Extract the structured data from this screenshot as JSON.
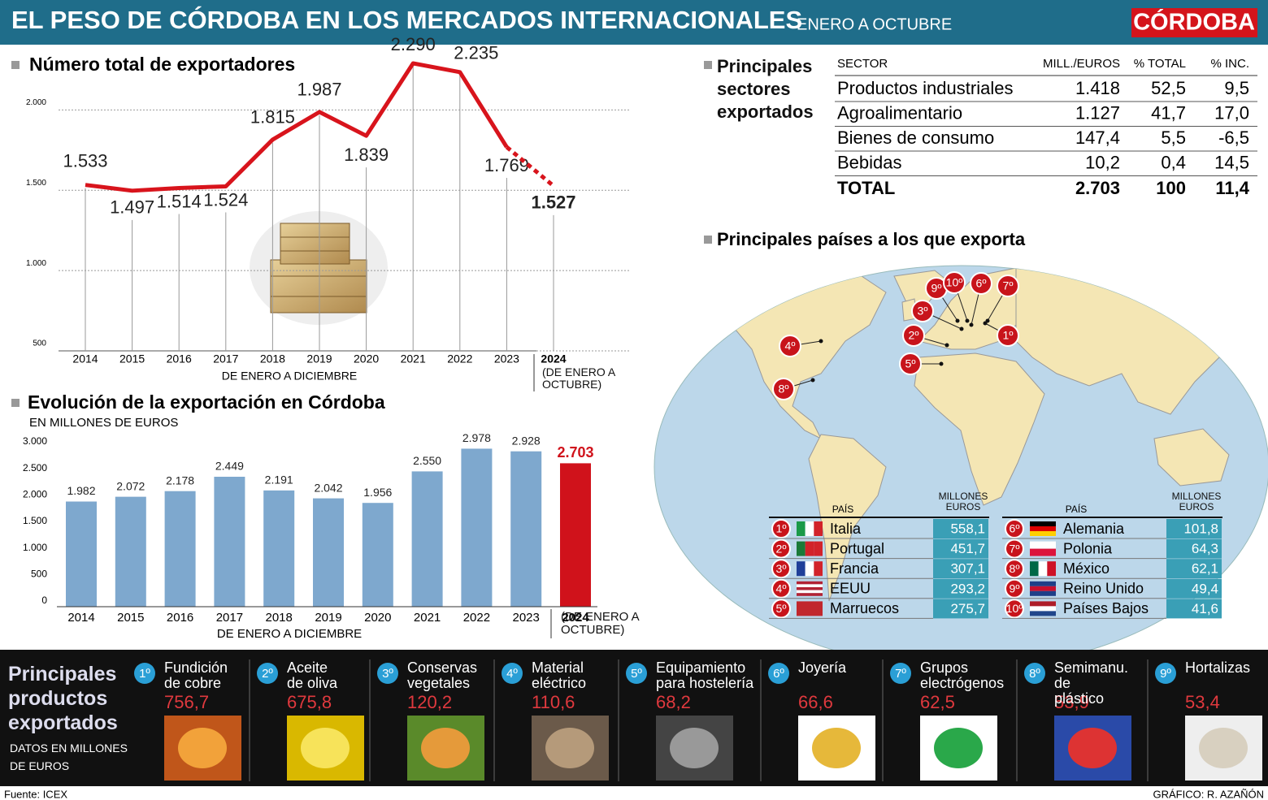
{
  "header": {
    "title": "EL PESO DE CÓRDOBA EN LOS MERCADOS INTERNACIONALES",
    "subtitle": "ENERO A OCTUBRE",
    "logo": "CÓRDOBA"
  },
  "chart_data": [
    {
      "type": "line",
      "title": "Número total de exportadores",
      "categories": [
        "2014",
        "2015",
        "2016",
        "2017",
        "2018",
        "2019",
        "2020",
        "2021",
        "2022",
        "2023",
        "2024"
      ],
      "values": [
        1533,
        1497,
        1514,
        1524,
        1815,
        1987,
        1839,
        2290,
        2235,
        1769,
        1527
      ],
      "value_labels": [
        "1.533",
        "1.497",
        "1.514",
        "1.524",
        "1.815",
        "1.987",
        "1.839",
        "2.290",
        "2.235",
        "1.769",
        "1.527"
      ],
      "color": "#d8141c",
      "ylim": [
        500,
        2300
      ],
      "yticks": [
        500,
        {
          "value": 1000,
          "label": "1.000"
        },
        {
          "value": 1500,
          "label": "1.500"
        },
        {
          "value": 2000,
          "label": "2.000"
        }
      ],
      "grid": true,
      "x_note": "DE ENERO A DICIEMBRE",
      "last_category_note": "(DE ENERO A OCTUBRE)"
    },
    {
      "type": "bar",
      "title": "Evolución de la exportación en Córdoba",
      "subtitle": "EN MILLONES DE EUROS",
      "categories": [
        "2014",
        "2015",
        "2016",
        "2017",
        "2018",
        "2019",
        "2020",
        "2021",
        "2022",
        "2023",
        "2024"
      ],
      "values": [
        1982,
        2072,
        2178,
        2449,
        2191,
        2042,
        1956,
        2550,
        2978,
        2928,
        2703
      ],
      "value_labels": [
        "1.982",
        "2.072",
        "2.178",
        "2.449",
        "2.191",
        "2.042",
        "1.956",
        "2.550",
        "2.978",
        "2.928",
        "2.703"
      ],
      "colors": [
        "#7ea8ce",
        "#7ea8ce",
        "#7ea8ce",
        "#7ea8ce",
        "#7ea8ce",
        "#7ea8ce",
        "#7ea8ce",
        "#7ea8ce",
        "#7ea8ce",
        "#7ea8ce",
        "#d0121b"
      ],
      "ylim": [
        0,
        3000
      ],
      "yticks": [
        0,
        500,
        {
          "value": 1000,
          "label": "1.000"
        },
        {
          "value": 1500,
          "label": "1.500"
        },
        {
          "value": 2000,
          "label": "2.000"
        },
        {
          "value": 2500,
          "label": "2.500"
        },
        {
          "value": 3000,
          "label": "3.000"
        }
      ],
      "grid": false,
      "x_note": "DE ENERO A DICIEMBRE",
      "last_category_note": "(DE ENERO A OCTUBRE)"
    }
  ],
  "sectors": {
    "title": "Principales sectores exportados",
    "columns": [
      "SECTOR",
      "MILL./EUROS",
      "% TOTAL",
      "% INC."
    ],
    "rows": [
      [
        "Productos industriales",
        "1.418",
        "52,5",
        "9,5"
      ],
      [
        "Agroalimentario",
        "1.127",
        "41,7",
        "17,0"
      ],
      [
        "Bienes de consumo",
        "147,4",
        "5,5",
        "-6,5"
      ],
      [
        "Bebidas",
        "10,2",
        "0,4",
        "14,5"
      ]
    ],
    "total": [
      "TOTAL",
      "2.703",
      "100",
      "11,4"
    ]
  },
  "countries": {
    "title": "Principales países a los que exporta",
    "columns": [
      "PAÍS",
      "MILLONES EUROS"
    ],
    "rows": [
      {
        "rank": "1º",
        "name": "Italia",
        "value": "558,1"
      },
      {
        "rank": "2º",
        "name": "Portugal",
        "value": "451,7"
      },
      {
        "rank": "3º",
        "name": "Francia",
        "value": "307,1"
      },
      {
        "rank": "4º",
        "name": "EEUU",
        "value": "293,2"
      },
      {
        "rank": "5º",
        "name": "Marruecos",
        "value": "275,7"
      },
      {
        "rank": "6º",
        "name": "Alemania",
        "value": "101,8"
      },
      {
        "rank": "7º",
        "name": "Polonia",
        "value": "64,3"
      },
      {
        "rank": "8º",
        "name": "México",
        "value": "62,1"
      },
      {
        "rank": "9º",
        "name": "Reino Unido",
        "value": "49,4"
      },
      {
        "rank": "10º",
        "name": "Países Bajos",
        "value": "41,6"
      }
    ]
  },
  "products": {
    "title": "Principales productos exportados",
    "subtitle": "DATOS EN MILLONES DE EUROS",
    "items": [
      {
        "rank": "1º",
        "name": "Fundición de cobre",
        "value": "756,7"
      },
      {
        "rank": "2º",
        "name": "Aceite de oliva",
        "value": "675,8"
      },
      {
        "rank": "3º",
        "name": "Conservas vegetales",
        "value": "120,2"
      },
      {
        "rank": "4º",
        "name": "Material eléctrico",
        "value": "110,6"
      },
      {
        "rank": "5º",
        "name": "Equipamiento para hostelería",
        "value": "68,2"
      },
      {
        "rank": "6º",
        "name": "Joyería",
        "value": "66,6"
      },
      {
        "rank": "7º",
        "name": "Grupos electrógenos",
        "value": "62,5"
      },
      {
        "rank": "8º",
        "name": "Semimanu. de plástico",
        "value": "53,9"
      },
      {
        "rank": "9º",
        "name": "Hortalizas",
        "value": "53,4"
      }
    ]
  },
  "footer": {
    "source": "Fuente: ICEX",
    "credit": "GRÁFICO: R. AZAÑÓN"
  }
}
